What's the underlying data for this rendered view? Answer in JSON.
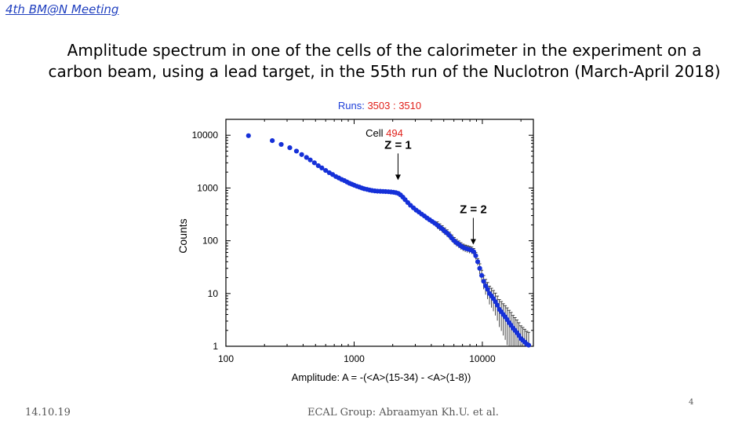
{
  "header": {
    "conference": "4th BM@N Meeting",
    "title_line1": "Amplitude spectrum in one of the cells of the calorimeter in the experiment on a",
    "title_line2": "carbon beam, using a lead target, in the 55th run of the Nuclotron (March-April 2018)"
  },
  "footer": {
    "date": "14.10.19",
    "group": "ECAL Group: Abraamyan Kh.U. et al.",
    "page": "4"
  },
  "chart_data": {
    "type": "scatter",
    "title_prefix": "Runs: ",
    "title_value": "3503 : 3510",
    "cell_label": "Cell ",
    "cell_value": "494",
    "xlabel": "Amplitude:  A = -(<A>(15-34)  -  <A>(1-8))",
    "ylabel": "Counts",
    "xscale": "log",
    "yscale": "log",
    "xlim": [
      100,
      25000
    ],
    "ylim": [
      1,
      20000
    ],
    "x_ticks": [
      100,
      1000,
      10000
    ],
    "x_tick_labels": [
      "100",
      "1000",
      "10000"
    ],
    "y_ticks": [
      1,
      10,
      100,
      1000,
      10000
    ],
    "y_tick_labels": [
      "1",
      "10",
      "100",
      "1000",
      "10000"
    ],
    "annotations": [
      {
        "text": "Z = 1",
        "x": 2200,
        "y": 1000
      },
      {
        "text": "Z = 2",
        "x": 8500,
        "y": 60
      }
    ],
    "colors": {
      "points": "#1530d8",
      "accent": "#e0201a",
      "title": "#1e3fd8",
      "errorbar": "#333333"
    },
    "points": [
      [
        150,
        9800
      ],
      [
        230,
        7900
      ],
      [
        270,
        6700
      ],
      [
        315,
        5800
      ],
      [
        355,
        5000
      ],
      [
        390,
        4300
      ],
      [
        425,
        3800
      ],
      [
        455,
        3400
      ],
      [
        490,
        3000
      ],
      [
        525,
        2650
      ],
      [
        560,
        2400
      ],
      [
        600,
        2150
      ],
      [
        640,
        1950
      ],
      [
        680,
        1800
      ],
      [
        720,
        1650
      ],
      [
        760,
        1550
      ],
      [
        800,
        1450
      ],
      [
        840,
        1380
      ],
      [
        880,
        1300
      ],
      [
        920,
        1230
      ],
      [
        960,
        1180
      ],
      [
        1000,
        1130
      ],
      [
        1050,
        1080
      ],
      [
        1100,
        1040
      ],
      [
        1150,
        1000
      ],
      [
        1200,
        965
      ],
      [
        1260,
        940
      ],
      [
        1320,
        915
      ],
      [
        1380,
        895
      ],
      [
        1450,
        880
      ],
      [
        1520,
        870
      ],
      [
        1600,
        865
      ],
      [
        1680,
        860
      ],
      [
        1760,
        855
      ],
      [
        1850,
        850
      ],
      [
        1940,
        840
      ],
      [
        2030,
        830
      ],
      [
        2120,
        815
      ],
      [
        2210,
        790
      ],
      [
        2300,
        740
      ],
      [
        2400,
        670
      ],
      [
        2500,
        600
      ],
      [
        2620,
        530
      ],
      [
        2750,
        470
      ],
      [
        2900,
        420
      ],
      [
        3050,
        380
      ],
      [
        3200,
        350
      ],
      [
        3360,
        320
      ],
      [
        3530,
        295
      ],
      [
        3700,
        270
      ],
      [
        3880,
        250
      ],
      [
        4060,
        232
      ],
      [
        4250,
        215
      ],
      [
        4450,
        198
      ],
      [
        4650,
        182
      ],
      [
        4860,
        168
      ],
      [
        5080,
        152
      ],
      [
        5300,
        140
      ],
      [
        5540,
        126
      ],
      [
        5780,
        112
      ],
      [
        6030,
        100
      ],
      [
        6280,
        92
      ],
      [
        6540,
        86
      ],
      [
        6800,
        80
      ],
      [
        7070,
        75
      ],
      [
        7350,
        72
      ],
      [
        7640,
        70
      ],
      [
        7940,
        68
      ],
      [
        8250,
        66
      ],
      [
        8560,
        62
      ],
      [
        8880,
        52
      ],
      [
        9200,
        40
      ],
      [
        9540,
        30
      ],
      [
        9880,
        22
      ],
      [
        10240,
        17
      ],
      [
        10600,
        14
      ],
      [
        10980,
        12
      ],
      [
        11370,
        10
      ],
      [
        11780,
        9
      ],
      [
        12200,
        8
      ],
      [
        12640,
        7
      ],
      [
        13100,
        6
      ],
      [
        13570,
        5
      ],
      [
        14060,
        4.5
      ],
      [
        14560,
        4
      ],
      [
        15080,
        3.6
      ],
      [
        15620,
        3.2
      ],
      [
        16180,
        2.8
      ],
      [
        16760,
        2.5
      ],
      [
        17360,
        2.2
      ],
      [
        17980,
        2
      ],
      [
        18620,
        1.8
      ],
      [
        19280,
        1.6
      ],
      [
        19970,
        1.4
      ],
      [
        20680,
        1.3
      ],
      [
        21420,
        1.2
      ],
      [
        22180,
        1.1
      ],
      [
        22970,
        1.05
      ]
    ]
  }
}
